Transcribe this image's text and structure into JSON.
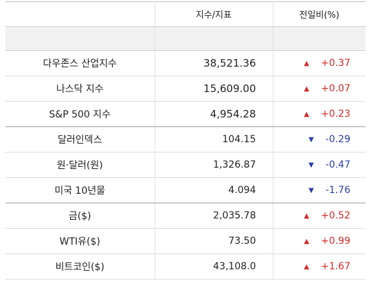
{
  "header": {
    "col1": "",
    "col2": "지수/지표",
    "col3": "전일비(%)"
  },
  "colors": {
    "up": "#d42a2a",
    "down": "#2c3ea8"
  },
  "rows": [
    {
      "name": "다우존스 산업지수",
      "value": "38,521.36",
      "dir": "up",
      "arrow": "▲",
      "change": "+0.37"
    },
    {
      "name": "나스닥 지수",
      "value": "15,609.00",
      "dir": "up",
      "arrow": "▲",
      "change": "+0.07"
    },
    {
      "name": "S&P 500 지수",
      "value": "4,954.28",
      "dir": "up",
      "arrow": "▲",
      "change": "+0.23"
    },
    {
      "name": "달러인덱스",
      "value": "104.15",
      "dir": "down",
      "arrow": "▼",
      "change": "-0.29"
    },
    {
      "name": "원·달러(원)",
      "value": "1,326.87",
      "dir": "down",
      "arrow": "▼",
      "change": "-0.47"
    },
    {
      "name": "미국 10년물",
      "value": "4.094",
      "dir": "down",
      "arrow": "▼",
      "change": "-1.76"
    },
    {
      "name": "금($)",
      "value": "2,035.78",
      "dir": "up",
      "arrow": "▲",
      "change": "+0.52"
    },
    {
      "name": "WTI유($)",
      "value": "73.50",
      "dir": "up",
      "arrow": "▲",
      "change": "+0.99"
    },
    {
      "name": "비트코인($)",
      "value": "43,108.0",
      "dir": "up",
      "arrow": "▲",
      "change": "+1.67"
    }
  ]
}
